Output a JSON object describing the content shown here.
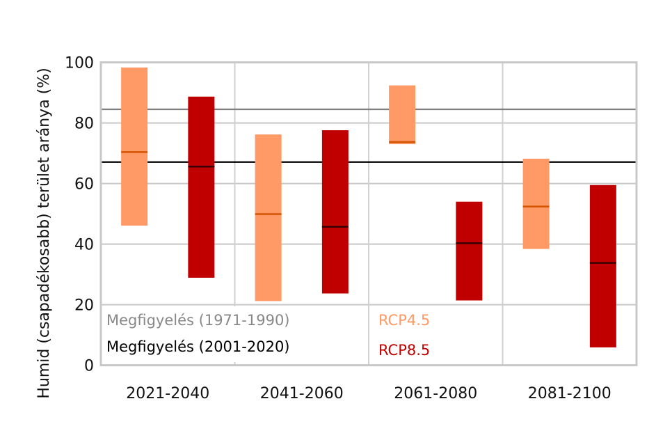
{
  "chart_data": {
    "type": "bar",
    "subtype": "floating-range-with-median",
    "ylabel": "Humid (csapadékosabb) terület aránya (%)",
    "xlabel": "",
    "ylim": [
      0,
      100
    ],
    "yticks": [
      0,
      20,
      40,
      60,
      80,
      100
    ],
    "grid": true,
    "categories": [
      "2021-2040",
      "2041-2060",
      "2061-2080",
      "2081-2100"
    ],
    "series": [
      {
        "name": "RCP4.5",
        "color": "#ff9966",
        "median_color": "#d35400",
        "min": [
          46.1,
          21.2,
          73.0,
          38.4
        ],
        "max": [
          98.3,
          76.2,
          92.4,
          68.2
        ],
        "median": [
          70.4,
          49.9,
          73.7,
          52.4
        ]
      },
      {
        "name": "RCP8.5",
        "color": "#c00000",
        "median_color": "#3a0000",
        "min": [
          28.9,
          23.7,
          21.4,
          5.9
        ],
        "max": [
          88.7,
          77.6,
          54.0,
          59.5
        ],
        "median": [
          65.6,
          45.7,
          40.3,
          33.8
        ]
      }
    ],
    "reference_lines": [
      {
        "name": "Megfigyelés (1971-1990)",
        "value": 84.5,
        "color": "#808080"
      },
      {
        "name": "Megfigyelés (2001-2020)",
        "value": 67.1,
        "color": "#000000"
      }
    ],
    "legend": "bottom-left inside plot"
  }
}
